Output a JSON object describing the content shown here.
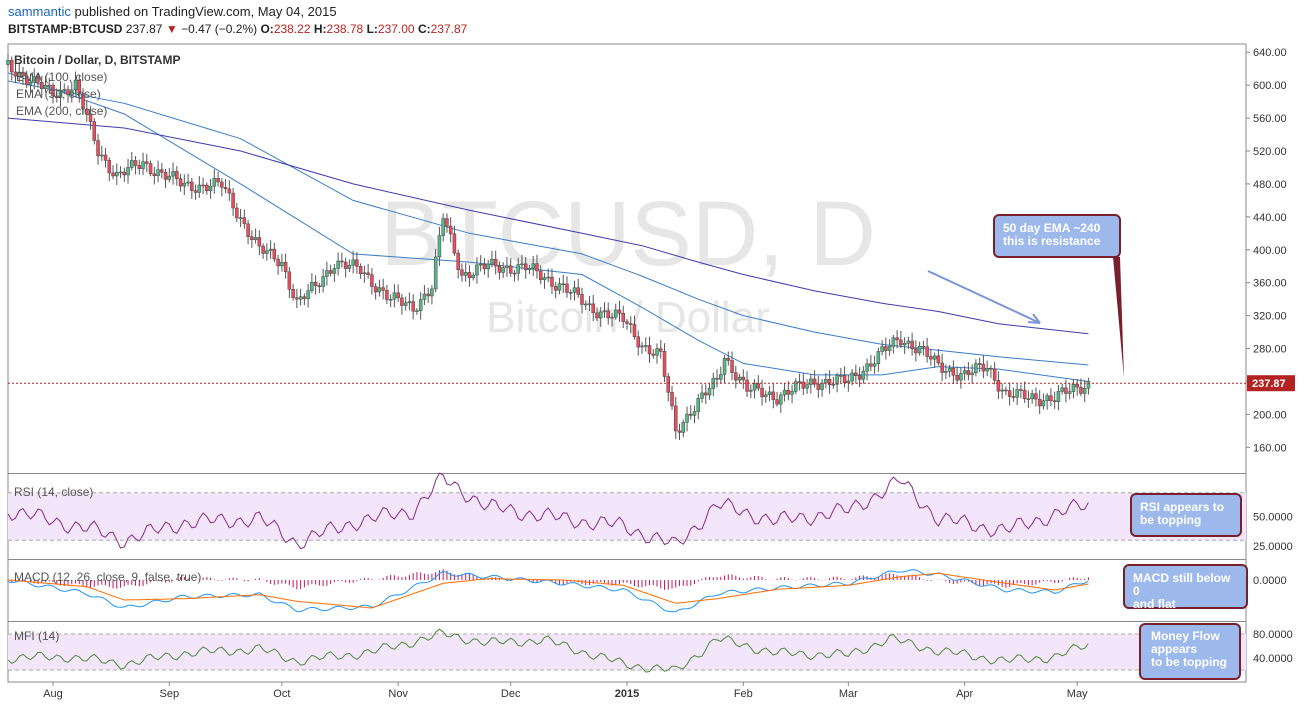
{
  "header": {
    "user": "sammantic",
    "published": "published on TradingView.com, May 04, 2015",
    "symbol": "BITSTAMP:BTCUSD",
    "price": "237.87",
    "change_arrow": "▼",
    "change": "−0.47 (−0.2%)",
    "o_label": "O:",
    "o_value": "238.22",
    "h_label": "H:",
    "h_value": "238.78",
    "l_label": "L:",
    "l_value": "237.00",
    "c_label": "C:",
    "c_value": "237.87"
  },
  "chart_data": {
    "type": "line",
    "main_pane": {
      "title": "Bitcoin / Dollar, D, BITSTAMP",
      "watermark_symbol": "BTCUSD, D",
      "watermark_name": "Bitcoin / Dollar",
      "indicators": [
        "EMA (100, close)",
        "EMA (50, close)",
        "EMA (200, close)"
      ],
      "y_ticks": [
        640,
        600,
        560,
        520,
        480,
        440,
        400,
        360,
        320,
        280,
        240,
        200,
        160
      ],
      "ylim": [
        130,
        650
      ],
      "last_price_label": "237.87",
      "last_price": 237.87,
      "price_series": {
        "name": "",
        "x": [
          "2014-07-20",
          "2014-07-26",
          "2014-08-01",
          "2014-08-07",
          "2014-08-13",
          "2014-08-18",
          "2014-08-25",
          "2014-09-05",
          "2014-09-15",
          "2014-09-25",
          "2014-10-01",
          "2014-10-05",
          "2014-10-10",
          "2014-10-15",
          "2014-10-22",
          "2014-10-30",
          "2014-11-05",
          "2014-11-10",
          "2014-11-13",
          "2014-11-18",
          "2014-11-25",
          "2014-12-05",
          "2014-12-15",
          "2014-12-22",
          "2014-12-31",
          "2015-01-05",
          "2015-01-10",
          "2015-01-14",
          "2015-01-18",
          "2015-01-25",
          "2015-01-27",
          "2015-02-02",
          "2015-02-10",
          "2015-02-20",
          "2015-03-01",
          "2015-03-10",
          "2015-03-15",
          "2015-03-20",
          "2015-03-25",
          "2015-04-01",
          "2015-04-07",
          "2015-04-12",
          "2015-04-18",
          "2015-04-25",
          "2015-05-04"
        ],
        "values": [
          625,
          605,
          590,
          600,
          520,
          490,
          505,
          478,
          478,
          400,
          385,
          335,
          355,
          385,
          375,
          340,
          330,
          355,
          440,
          370,
          380,
          378,
          355,
          330,
          315,
          285,
          270,
          180,
          205,
          240,
          270,
          230,
          222,
          240,
          240,
          275,
          292,
          280,
          258,
          248,
          258,
          225,
          220,
          220,
          238
        ]
      },
      "ema_series": [
        {
          "name": "EMA (50, close)",
          "x": [
            "2014-07-20",
            "2014-08-20",
            "2014-09-20",
            "2014-10-20",
            "2014-11-20",
            "2014-12-20",
            "2015-01-05",
            "2015-01-20",
            "2015-02-01",
            "2015-02-20",
            "2015-03-10",
            "2015-03-25",
            "2015-04-10",
            "2015-05-04"
          ],
          "values": [
            615,
            565,
            480,
            395,
            385,
            370,
            330,
            290,
            262,
            248,
            248,
            258,
            255,
            240
          ]
        },
        {
          "name": "EMA (100, close)",
          "x": [
            "2014-07-20",
            "2014-08-20",
            "2014-09-20",
            "2014-10-20",
            "2014-11-20",
            "2014-12-20",
            "2015-01-05",
            "2015-01-20",
            "2015-02-01",
            "2015-02-20",
            "2015-03-10",
            "2015-03-25",
            "2015-04-10",
            "2015-05-04"
          ],
          "values": [
            605,
            578,
            535,
            460,
            420,
            395,
            368,
            340,
            320,
            300,
            285,
            278,
            270,
            260
          ]
        },
        {
          "name": "EMA (200, close)",
          "x": [
            "2014-07-20",
            "2014-08-20",
            "2014-09-20",
            "2014-10-20",
            "2014-11-20",
            "2014-12-20",
            "2015-01-05",
            "2015-01-20",
            "2015-02-01",
            "2015-02-20",
            "2015-03-10",
            "2015-03-25",
            "2015-04-10",
            "2015-05-04"
          ],
          "values": [
            560,
            548,
            520,
            480,
            448,
            420,
            405,
            385,
            370,
            350,
            335,
            325,
            310,
            298
          ]
        }
      ]
    },
    "x_axis": {
      "labels": [
        "Aug",
        "Sep",
        "Oct",
        "Nov",
        "Dec",
        "2015",
        "Feb",
        "Mar",
        "Apr",
        "May"
      ],
      "dates": [
        "2014-08-01",
        "2014-09-01",
        "2014-10-01",
        "2014-11-01",
        "2014-12-01",
        "2015-01-01",
        "2015-02-01",
        "2015-03-01",
        "2015-04-01",
        "2015-05-01"
      ],
      "range": [
        "2014-07-20",
        "2015-06-15"
      ]
    },
    "rsi_pane": {
      "title": "RSI (14, close)",
      "y_ticks": [
        "50.0000",
        "25.0000"
      ],
      "ylim": [
        15,
        85
      ],
      "band": [
        30,
        70
      ],
      "x": [
        "2014-07-20",
        "2014-08-10",
        "2014-08-20",
        "2014-09-05",
        "2014-09-25",
        "2014-10-05",
        "2014-10-20",
        "2014-11-05",
        "2014-11-13",
        "2014-11-25",
        "2014-12-15",
        "2014-12-31",
        "2015-01-14",
        "2015-01-25",
        "2015-02-10",
        "2015-03-01",
        "2015-03-15",
        "2015-03-25",
        "2015-04-12",
        "2015-04-25",
        "2015-05-04"
      ],
      "values": [
        55,
        40,
        30,
        45,
        48,
        28,
        45,
        55,
        82,
        58,
        48,
        42,
        25,
        60,
        46,
        55,
        80,
        48,
        38,
        52,
        60
      ]
    },
    "macd_pane": {
      "title": "MACD (12, 26, close, 9, false, true)",
      "y_ticks": [
        "0.0000"
      ],
      "ylim": [
        -60,
        30
      ],
      "x": [
        "2014-07-20",
        "2014-08-10",
        "2014-08-20",
        "2014-09-05",
        "2014-09-25",
        "2014-10-05",
        "2014-10-25",
        "2014-11-13",
        "2014-11-25",
        "2014-12-15",
        "2014-12-31",
        "2015-01-14",
        "2015-01-25",
        "2015-02-10",
        "2015-03-01",
        "2015-03-15",
        "2015-03-25",
        "2015-04-12",
        "2015-04-25",
        "2015-05-04"
      ],
      "macd": [
        0,
        -20,
        -42,
        -25,
        -22,
        -45,
        -40,
        10,
        5,
        -5,
        -15,
        -50,
        -20,
        -12,
        -5,
        15,
        8,
        -15,
        -18,
        0
      ],
      "signal": [
        0,
        -10,
        -30,
        -28,
        -22,
        -32,
        -42,
        -5,
        2,
        0,
        -8,
        -35,
        -28,
        -14,
        -8,
        5,
        10,
        -5,
        -15,
        -6
      ]
    },
    "mfi_pane": {
      "title": "MFI (14)",
      "y_ticks": [
        "80.0000",
        "40.0000"
      ],
      "ylim": [
        0,
        100
      ],
      "band": [
        20,
        80
      ],
      "x": [
        "2014-07-20",
        "2014-08-05",
        "2014-08-20",
        "2014-09-05",
        "2014-09-25",
        "2014-10-05",
        "2014-10-25",
        "2014-11-13",
        "2014-11-25",
        "2014-12-10",
        "2014-12-31",
        "2015-01-14",
        "2015-01-25",
        "2015-02-10",
        "2015-03-01",
        "2015-03-12",
        "2015-03-25",
        "2015-04-12",
        "2015-04-25",
        "2015-05-04"
      ],
      "values": [
        40,
        42,
        30,
        48,
        55,
        35,
        50,
        80,
        65,
        70,
        30,
        18,
        72,
        48,
        45,
        72,
        52,
        35,
        42,
        62
      ]
    }
  },
  "annotations": {
    "ema_note": {
      "line1": "50 day EMA ~240",
      "line2": "this is resistance"
    },
    "rsi_note": {
      "line1": "RSI appears to",
      "line2": "be topping"
    },
    "macd_note": {
      "line1": "MACD still below 0",
      "line2": "and flat"
    },
    "mfi_note": {
      "line1": "Money Flow",
      "line2": "appears",
      "line3": "to be topping"
    }
  },
  "colors": {
    "price_up": "#53b987",
    "price_down": "#eb4d5c",
    "ema": "#3c3cae",
    "ema50": "#3a7dc9",
    "rsi": "#8b2a8b",
    "macd": "#2196f3",
    "signal": "#ff6d00",
    "mfi": "#4f8a3c",
    "band_fill": "#f3e6fa",
    "last_price": "#b22222",
    "note_bg": "#9db9ec",
    "note_border": "#7a1f2c"
  }
}
